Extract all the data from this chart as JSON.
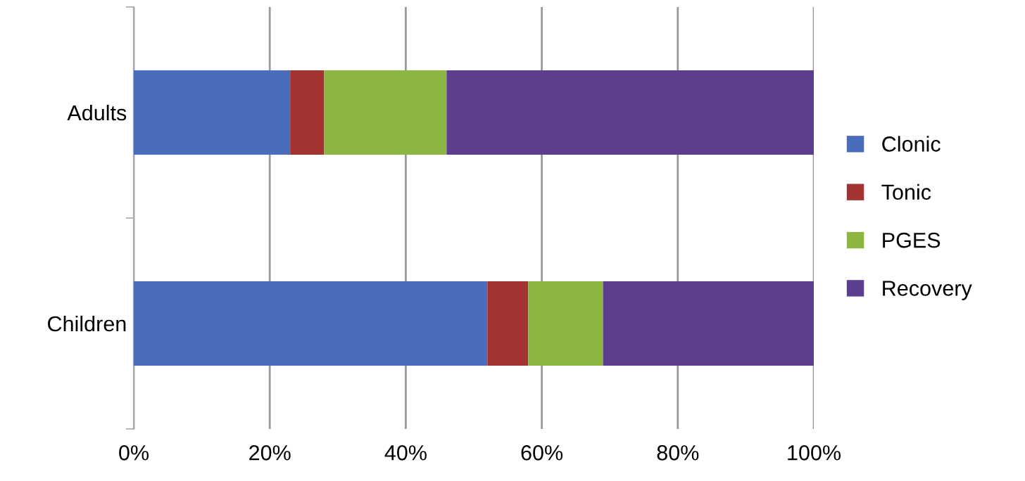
{
  "chart_data": {
    "type": "bar",
    "orientation": "horizontal",
    "stacked": true,
    "categories": [
      "Adults",
      "Children"
    ],
    "series": [
      {
        "name": "Clonic",
        "color": "#4a6dbb",
        "values": [
          23,
          52
        ]
      },
      {
        "name": "Tonic",
        "color": "#a33331",
        "values": [
          5,
          6
        ]
      },
      {
        "name": "PGES",
        "color": "#8cb542",
        "values": [
          18,
          11
        ]
      },
      {
        "name": "Recovery",
        "color": "#5d3e8e",
        "values": [
          54,
          31
        ]
      }
    ],
    "xlim": [
      0,
      100
    ],
    "xticks": [
      {
        "value": 0,
        "label": "0%"
      },
      {
        "value": 20,
        "label": "20%"
      },
      {
        "value": 40,
        "label": "40%"
      },
      {
        "value": 60,
        "label": "60%"
      },
      {
        "value": 80,
        "label": "80%"
      },
      {
        "value": 100,
        "label": "100%"
      }
    ],
    "grid": "x",
    "legend": "right"
  }
}
